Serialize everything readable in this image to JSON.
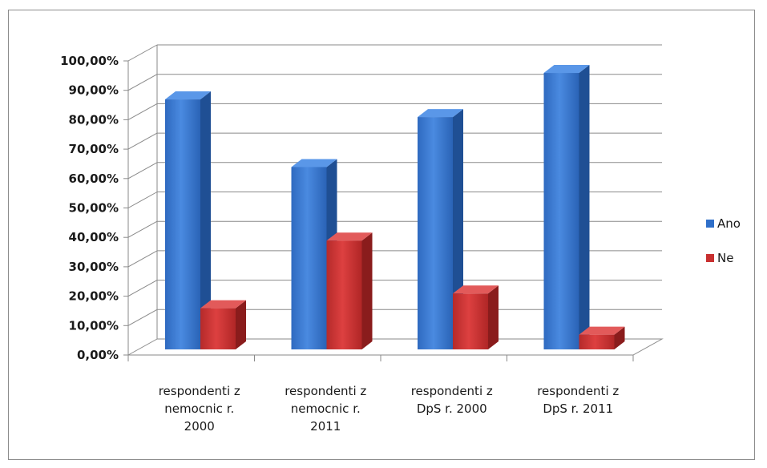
{
  "chart_data": {
    "type": "bar",
    "categories": [
      [
        "respondenti z",
        "nemocnic r.",
        "2000"
      ],
      [
        "respondenti z",
        "nemocnic r.",
        "2011"
      ],
      [
        "respondenti z",
        "DpS r. 2000"
      ],
      [
        "respondenti z",
        "DpS r. 2011"
      ]
    ],
    "series": [
      {
        "name": "Ano",
        "values": [
          85,
          62,
          79,
          94
        ],
        "color": "#2f6fc9"
      },
      {
        "name": "Ne",
        "values": [
          14,
          37,
          19,
          5
        ],
        "color": "#c83030"
      }
    ],
    "y_ticks": [
      "0,00%",
      "10,00%",
      "20,00%",
      "30,00%",
      "40,00%",
      "50,00%",
      "60,00%",
      "70,00%",
      "80,00%",
      "90,00%",
      "100,00%"
    ],
    "ylim": [
      0,
      100
    ],
    "grid": true,
    "legend": "right",
    "style": "3d-column"
  }
}
